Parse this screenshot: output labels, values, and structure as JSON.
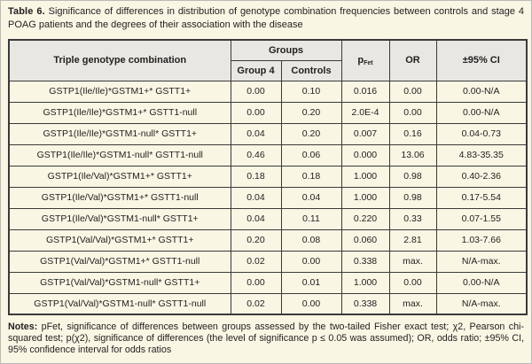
{
  "colors": {
    "page-bg": "#faf6e4",
    "header-bg": "#e9e7e2",
    "border-color": "#3a3a3a",
    "frame-color": "#b9b9b9",
    "text-color": "#222222"
  },
  "caption": {
    "label": "Table 6.",
    "text": "Significance of differences in distribution of genotype combination frequencies between controls and stage 4 POAG patients and the degrees of their association with the disease"
  },
  "table": {
    "headers": {
      "genotype": "Triple genotype combination",
      "groups": "Groups",
      "group4": "Group 4",
      "controls": "Controls",
      "p_base": "p",
      "p_sub": "Fet",
      "or": "OR",
      "ci": "±95% CI"
    },
    "rows": [
      {
        "genotype": "GSTP1(Ile/Ile)*GSTM1+* GSTT1+",
        "group4": "0.00",
        "controls": "0.10",
        "p_fet": "0.016",
        "or": "0.00",
        "ci": "0.00-N/A"
      },
      {
        "genotype": "GSTP1(Ile/Ile)*GSTM1+* GSTT1-null",
        "group4": "0.00",
        "controls": "0.20",
        "p_fet": "2.0E-4",
        "or": "0.00",
        "ci": "0.00-N/A"
      },
      {
        "genotype": "GSTP1(Ile/Ile)*GSTM1-null* GSTT1+",
        "group4": "0.04",
        "controls": "0.20",
        "p_fet": "0.007",
        "or": "0.16",
        "ci": "0.04-0.73"
      },
      {
        "genotype": "GSTP1(Ile/Ile)*GSTM1-null* GSTT1-null",
        "group4": "0.46",
        "controls": "0.06",
        "p_fet": "0.000",
        "or": "13.06",
        "ci": "4.83-35.35"
      },
      {
        "genotype": "GSTP1(Ile/Val)*GSTM1+* GSTT1+",
        "group4": "0.18",
        "controls": "0.18",
        "p_fet": "1.000",
        "or": "0.98",
        "ci": "0.40-2.36"
      },
      {
        "genotype": "GSTP1(Ile/Val)*GSTM1+* GSTT1-null",
        "group4": "0.04",
        "controls": "0.04",
        "p_fet": "1.000",
        "or": "0.98",
        "ci": "0.17-5.54"
      },
      {
        "genotype": "GSTP1(Ile/Val)*GSTM1-null* GSTT1+",
        "group4": "0.04",
        "controls": "0.11",
        "p_fet": "0.220",
        "or": "0.33",
        "ci": "0.07-1.55"
      },
      {
        "genotype": "GSTP1(Val/Val)*GSTM1+* GSTT1+",
        "group4": "0.20",
        "controls": "0.08",
        "p_fet": "0.060",
        "or": "2.81",
        "ci": "1.03-7.66"
      },
      {
        "genotype": "GSTP1(Val/Val)*GSTM1+* GSTT1-null",
        "group4": "0.02",
        "controls": "0.00",
        "p_fet": "0.338",
        "or": "max.",
        "ci": "N/A-max."
      },
      {
        "genotype": "GSTP1(Val/Val)*GSTM1-null* GSTT1+",
        "group4": "0.00",
        "controls": "0.01",
        "p_fet": "1.000",
        "or": "0.00",
        "ci": "0.00-N/A"
      },
      {
        "genotype": "GSTP1(Val/Val)*GSTM1-null* GSTT1-null",
        "group4": "0.02",
        "controls": "0.00",
        "p_fet": "0.338",
        "or": "max.",
        "ci": "N/A-max."
      }
    ]
  },
  "notes": {
    "label": "Notes:",
    "text": "pFet, significance of differences between groups assessed by the two-tailed Fisher exact test; χ2, Pearson chi-squared test; p(χ2), significance of differences (the level of significance p ≤ 0.05 was assumed); OR, odds ratio; ±95% CI, 95% confidence interval for odds ratios"
  }
}
